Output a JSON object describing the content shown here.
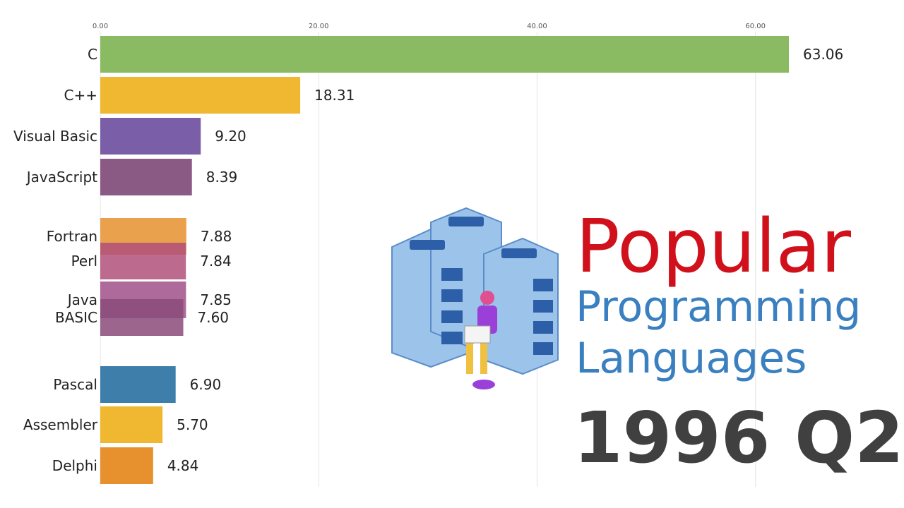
{
  "chart_data": {
    "type": "bar",
    "orientation": "horizontal",
    "title": [
      "Popular",
      "Programming",
      "Languages"
    ],
    "period": "1996 Q2",
    "categories": [
      "C",
      "C++",
      "Visual Basic",
      "JavaScript",
      "Fortran",
      "Perl",
      "Java",
      "BASIC",
      "Pascal",
      "Assembler",
      "Delphi"
    ],
    "values": [
      63.06,
      18.31,
      9.2,
      8.39,
      7.88,
      7.84,
      7.85,
      7.6,
      6.9,
      5.7,
      4.84
    ],
    "value_labels": [
      "63.06",
      "18.31",
      "9.20",
      "8.39",
      "7.88",
      "7.84",
      "7.85",
      "7.60",
      "6.90",
      "5.70",
      "4.84"
    ],
    "colors": [
      "#8aba62",
      "#f0b830",
      "#7a5ea8",
      "#8a5a84",
      "#e6902e",
      "#b0507a",
      "#a0508a",
      "#8a4a7a",
      "#3e7eaa",
      "#f0b830",
      "#e6902e"
    ],
    "xlim": [
      0,
      65
    ],
    "xticks": [
      {
        "value": 0,
        "label": "0.00"
      },
      {
        "value": 20,
        "label": "20.00"
      },
      {
        "value": 40,
        "label": "40.00"
      },
      {
        "value": 60,
        "label": "60.00"
      }
    ],
    "grid": true
  }
}
